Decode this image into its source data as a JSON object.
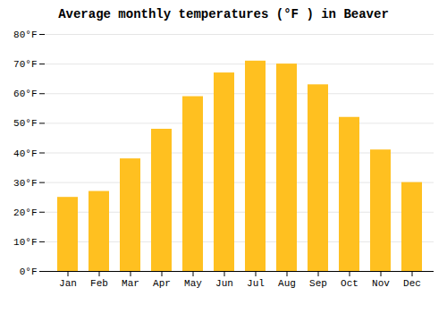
{
  "chart_data": {
    "type": "bar",
    "title": "Average monthly temperatures (°F ) in Beaver",
    "categories": [
      "Jan",
      "Feb",
      "Mar",
      "Apr",
      "May",
      "Jun",
      "Jul",
      "Aug",
      "Sep",
      "Oct",
      "Nov",
      "Dec"
    ],
    "values": [
      25,
      27,
      38,
      48,
      59,
      67,
      71,
      70,
      63,
      52,
      41,
      30
    ],
    "color": "#FFC020",
    "ylim": [
      0,
      80
    ],
    "yticks": [
      {
        "value": 0,
        "label": "0°F"
      },
      {
        "value": 10,
        "label": "10°F"
      },
      {
        "value": 20,
        "label": "20°F"
      },
      {
        "value": 30,
        "label": "30°F"
      },
      {
        "value": 40,
        "label": "40°F"
      },
      {
        "value": 50,
        "label": "50°F"
      },
      {
        "value": 60,
        "label": "60°F"
      },
      {
        "value": 70,
        "label": "70°F"
      },
      {
        "value": 80,
        "label": "80°F"
      }
    ],
    "grid": true
  }
}
